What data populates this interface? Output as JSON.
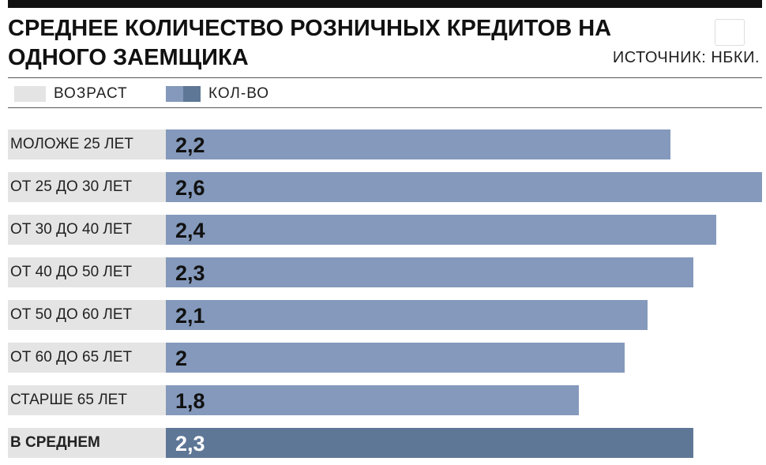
{
  "chart_data": {
    "type": "bar",
    "orientation": "horizontal",
    "title": "СРЕДНЕЕ КОЛИЧЕСТВО РОЗНИЧНЫХ КРЕДИТОВ НА ОДНОГО ЗАЕМЩИКА",
    "source": "ИСТОЧНИК: НБКИ.",
    "category_label": "ВОЗРАСТ",
    "category_color": "#e4e4e4",
    "categories": [
      "МОЛОЖЕ 25 ЛЕТ",
      "ОТ 25 ДО 30 ЛЕТ",
      "ОТ 30 ДО 40 ЛЕТ",
      "ОТ 40 ДО 50 ЛЕТ",
      "ОТ 50 ДО 60 ЛЕТ",
      "ОТ 60 ДО 65 ЛЕТ",
      "СТАРШЕ 65 ЛЕТ",
      "В СРЕДНЕМ"
    ],
    "series": [
      {
        "name": "КОЛ-ВО",
        "color": "#8499bb",
        "colors": [
          "#8499bb",
          "#8499bb",
          "#8499bb",
          "#8499bb",
          "#8499bb",
          "#8499bb",
          "#8499bb",
          "#5f7797"
        ],
        "values": [
          2.2,
          2.6,
          2.4,
          2.3,
          2.1,
          2,
          1.8,
          2.3
        ],
        "value_labels": [
          "2,2",
          "2,6",
          "2,4",
          "2,3",
          "2,1",
          "2",
          "1,8",
          "2,3"
        ]
      }
    ]
  }
}
